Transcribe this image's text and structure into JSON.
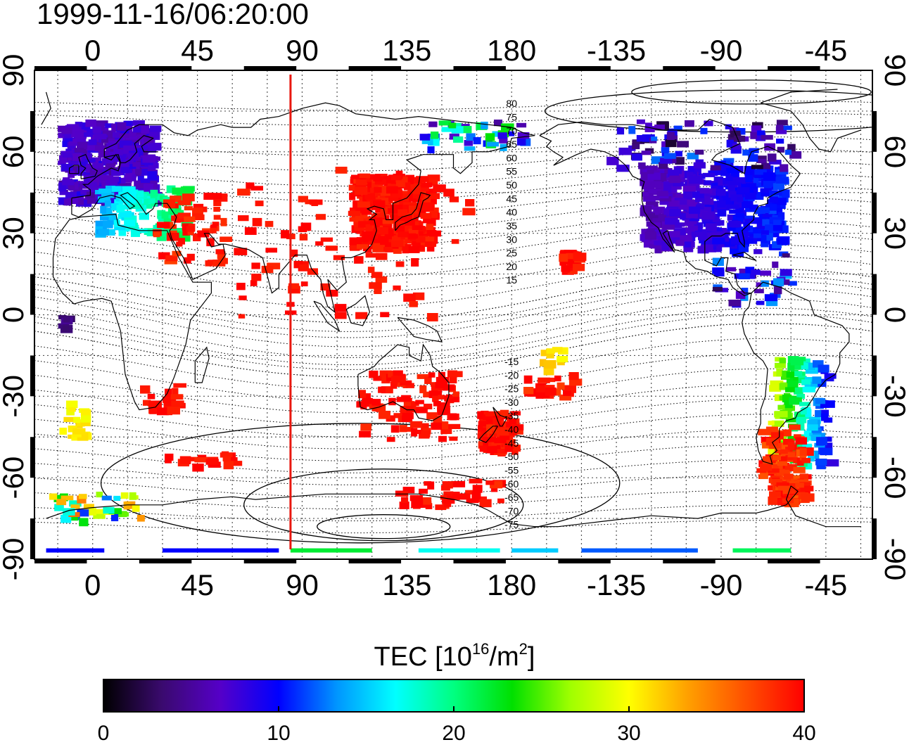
{
  "title": "1999-11-16/06:20:00",
  "map": {
    "lon_ticks": [
      "0",
      "45",
      "90",
      "135",
      "180",
      "-135",
      "-90",
      "-45"
    ],
    "lat_ticks": [
      "90",
      "60",
      "30",
      "0",
      "-30",
      "-60",
      "-90"
    ],
    "lon_range": [
      -25,
      335
    ],
    "lat_range": [
      -90,
      90
    ],
    "grid": "dotted, every 15 degrees",
    "contour_labels_north": [
      "80",
      "75",
      "70",
      "65",
      "60",
      "55",
      "50",
      "45",
      "40",
      "35",
      "30",
      "25",
      "20",
      "15"
    ],
    "contour_labels_south": [
      "-15",
      "-20",
      "-25",
      "-30",
      "-35",
      "-40",
      "-45",
      "-50",
      "-55",
      "-60",
      "-65",
      "-70",
      "-75"
    ],
    "marker_line_longitude": 85,
    "marker_line_color": "#e8170f",
    "colors": {
      "coastline": "#000000",
      "grid": "#555555"
    }
  },
  "colorbar": {
    "label_main": "TEC  [10",
    "label_sup1": "16",
    "label_mid": "/m",
    "label_sup2": "2",
    "label_end": "]",
    "ticks": [
      "0",
      "10",
      "20",
      "30",
      "40"
    ],
    "range": [
      0,
      40
    ],
    "stops": [
      "#000000",
      "#3a0a6e",
      "#5500c8",
      "#0000ff",
      "#0096ff",
      "#00ffff",
      "#00ff80",
      "#00e000",
      "#a0ff00",
      "#ffff00",
      "#ffa000",
      "#ff5000",
      "#ff0000"
    ]
  },
  "tec_regions": [
    {
      "name": "europe",
      "tec": 9
    },
    {
      "name": "east-asia-japan",
      "tec": 40
    },
    {
      "name": "north-america",
      "tec": 8
    },
    {
      "name": "south-america",
      "tec": 30
    },
    {
      "name": "australia-nz",
      "tec": 39
    },
    {
      "name": "antarctica-coast",
      "tec": 15
    }
  ]
}
